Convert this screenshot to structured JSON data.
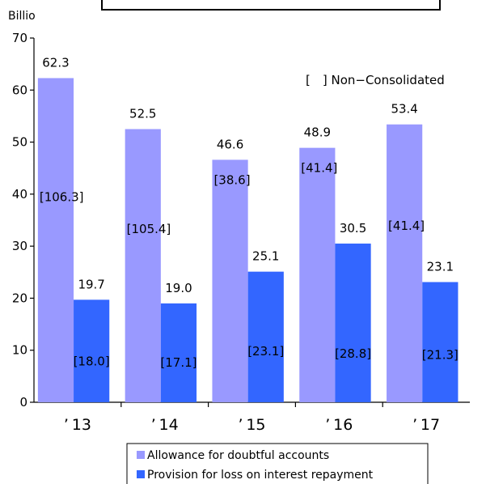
{
  "chart_data": {
    "type": "bar",
    "unit_label": "Billio",
    "note": "[　] Non−Consolidated",
    "categories": [
      "’ 13",
      "’ 14",
      "’ 15",
      "’ 16",
      "’ 17"
    ],
    "ylim": [
      0,
      70
    ],
    "yticks": [
      "0",
      "10",
      "20",
      "30",
      "40",
      "50",
      "60",
      "70"
    ],
    "series": [
      {
        "name": "Allowance for doubtful accounts",
        "color": "#9999ff",
        "values": [
          62.3,
          52.5,
          46.6,
          48.9,
          53.4
        ],
        "value_labels": [
          "62.3",
          "52.5",
          "46.6",
          "48.9",
          "53.4"
        ],
        "non_consolidated": [
          "[106.3]",
          "[105.4]",
          "[38.6]",
          "[41.4]",
          "[41.4]"
        ]
      },
      {
        "name": "Provision for loss on interest repayment",
        "color": "#3366ff",
        "values": [
          19.7,
          19.0,
          25.1,
          30.5,
          23.1
        ],
        "value_labels": [
          "19.7",
          "19.0",
          "25.1",
          "30.5",
          "23.1"
        ],
        "non_consolidated": [
          "[18.0]",
          "[17.1]",
          "[23.1]",
          "[28.8]",
          "[21.3]"
        ]
      }
    ],
    "legend_position": "bottom"
  }
}
